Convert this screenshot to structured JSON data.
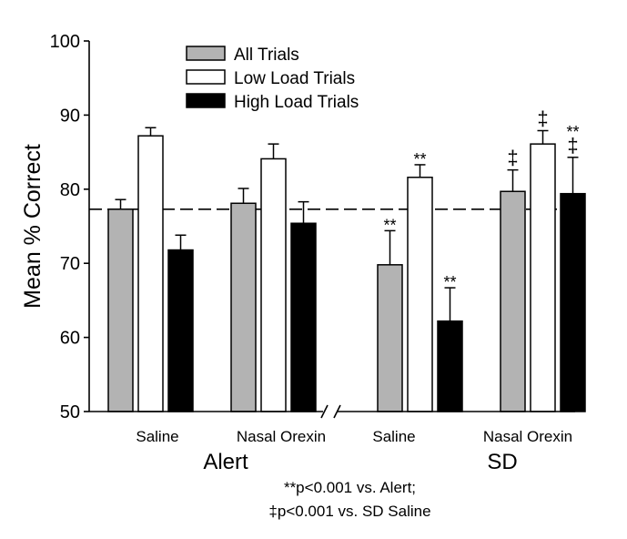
{
  "chart_data": {
    "type": "bar",
    "title": "",
    "ylabel": "Mean % Correct",
    "xlabel": "",
    "ylim": [
      50,
      100
    ],
    "yticks": [
      50,
      60,
      70,
      80,
      90,
      100
    ],
    "grid": false,
    "legend_position": "top-center",
    "reference_line": {
      "value": 77.3,
      "style": "dashed"
    },
    "axis_break": "between Nasal Orexin (Alert) and Saline (SD)",
    "categories": [
      "Saline",
      "Nasal Orexin",
      "Saline",
      "Nasal Orexin"
    ],
    "groups": [
      {
        "label": "Alert",
        "categories": [
          0,
          1
        ]
      },
      {
        "label": "SD",
        "categories": [
          2,
          3
        ]
      }
    ],
    "series": [
      {
        "name": "All Trials",
        "color": "#b3b3b3",
        "values": [
          77.3,
          78.1,
          69.8,
          79.7
        ],
        "errors": [
          1.3,
          2.0,
          4.6,
          2.9
        ]
      },
      {
        "name": "Low Load Trials",
        "color": "#ffffff",
        "values": [
          87.2,
          84.1,
          81.6,
          86.1
        ],
        "errors": [
          1.1,
          2.0,
          1.7,
          1.8
        ]
      },
      {
        "name": "High Load Trials",
        "color": "#000000",
        "values": [
          71.8,
          75.4,
          62.2,
          79.4
        ],
        "errors": [
          2.0,
          2.9,
          4.5,
          4.9
        ]
      }
    ],
    "annotations": [
      {
        "category": 2,
        "series": 0,
        "text": "**"
      },
      {
        "category": 2,
        "series": 1,
        "text": "**"
      },
      {
        "category": 2,
        "series": 2,
        "text": "**"
      },
      {
        "category": 3,
        "series": 0,
        "text": "‡"
      },
      {
        "category": 3,
        "series": 1,
        "text": "‡"
      },
      {
        "category": 3,
        "series": 2,
        "text": "**\n‡"
      }
    ],
    "footnotes": [
      "**p<0.001 vs. Alert;",
      "‡p<0.001 vs. SD Saline"
    ]
  }
}
